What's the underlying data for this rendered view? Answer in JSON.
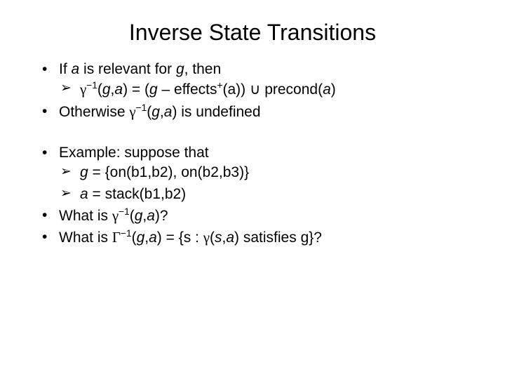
{
  "title": "Inverse State Transitions",
  "b1": {
    "line": "If <span class='ital'>a</span> is relevant for <span class='ital'>g</span>, then",
    "sub": "<span class='sym'>γ</span><sup>−1</sup>(<span class='ital'>g</span>,<span class='ital'>a</span>) = (<span class='ital'>g</span> – effects<sup>+</sup>(a)) <span class='sym'>∪</span> precond(<span class='ital'>a</span>)"
  },
  "b2": "Otherwise <span class='sym'>γ</span><sup>−1</sup>(<span class='ital'>g</span>,<span class='ital'>a</span>) is undefined",
  "b3": {
    "line": "Example: suppose that",
    "sub1": "<span class='ital'>g</span> = {on(b1,b2), on(b2,b3)}",
    "sub2": "<span class='ital'>a</span> = stack(b1,b2)"
  },
  "b4": "What is <span class='sym'>γ</span><sup>−1</sup>(<span class='ital'>g</span>,<span class='ital'>a</span>)?",
  "b5": "What is <span class='sym'>Γ</span><sup>−1</sup>(<span class='ital'>g</span>,<span class='ital'>a</span>) = {s : <span class='sym'>γ</span>(<span class='ital'>s</span>,<span class='ital'>a</span>) satisfies g}?"
}
